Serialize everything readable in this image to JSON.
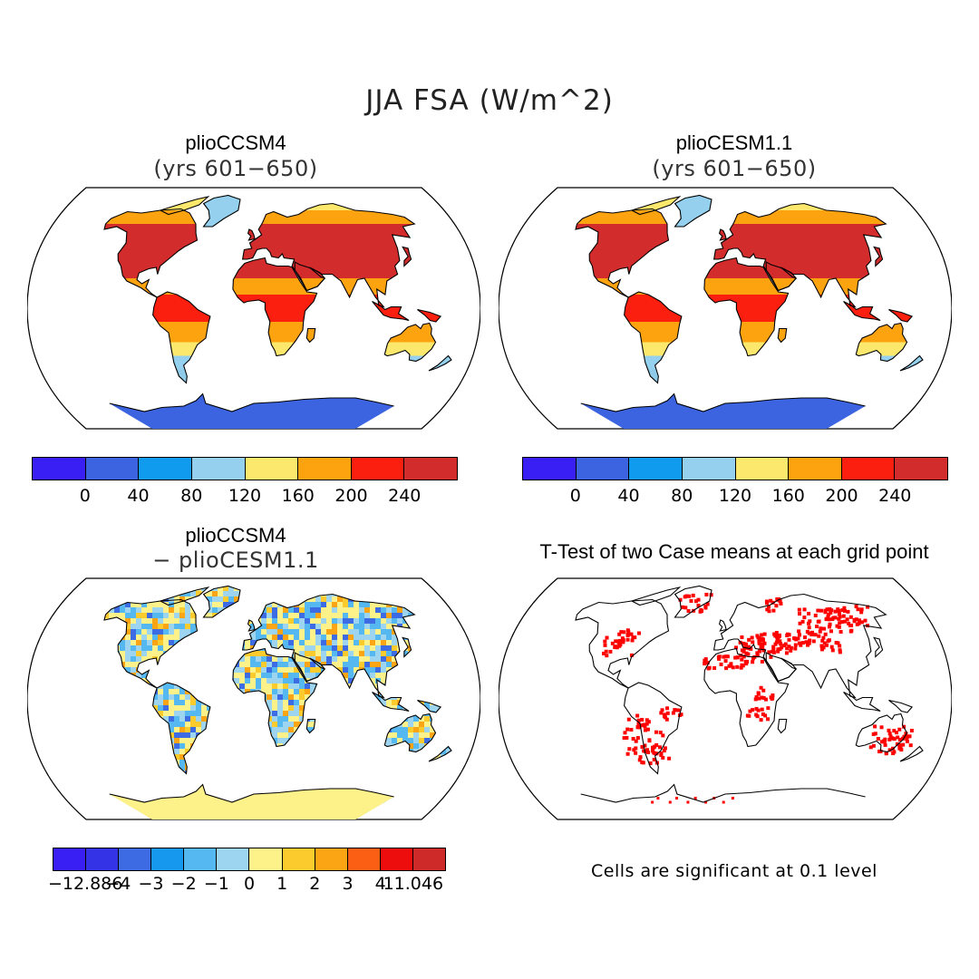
{
  "figure": {
    "title": "JJA FSA (W/m^2)"
  },
  "panels": {
    "p1": {
      "title": "plioCCSM4",
      "subtitle": "(yrs 601−650)"
    },
    "p2": {
      "title": "plioCESM1.1",
      "subtitle": "(yrs 601−650)"
    },
    "p3": {
      "title": "plioCCSM4",
      "subtitle": "− plioCESM1.1"
    },
    "p4": {
      "title": "T-Test of two Case means at each grid point",
      "note": "Cells are significant at 0.1 level"
    }
  },
  "colorbar_abs": {
    "colors": [
      "#3a1ff5",
      "#3c63e0",
      "#119bef",
      "#95d0ee",
      "#fce86c",
      "#fca30f",
      "#fb1f0f",
      "#d22c2c"
    ],
    "labels": [
      "0",
      "40",
      "80",
      "120",
      "160",
      "200",
      "240"
    ]
  },
  "colorbar_diff": {
    "colors": [
      "#3a1ff5",
      "#3434e6",
      "#3c6be4",
      "#1798ef",
      "#55b8f1",
      "#9dd4ef",
      "#fdf18a",
      "#fbcb2d",
      "#fba515",
      "#fb5f14",
      "#ee0d0d",
      "#cf2a2a"
    ],
    "labels": [
      "−12.886",
      "−4",
      "−3",
      "−2",
      "−1",
      "0",
      "1",
      "2",
      "3",
      "4",
      "11.046"
    ]
  },
  "significance_color": "#ff0000",
  "land_colors": {
    "p1": {
      "tropics": "#fb1f0f",
      "subtropics": "#d22c2c",
      "mid": "#fca30f",
      "high": "#fce86c",
      "polar": "#95d0ee",
      "ice": "#3c63e0"
    },
    "p3": {
      "neg": "#55b8f1",
      "pos": "#fbcb2d"
    }
  }
}
